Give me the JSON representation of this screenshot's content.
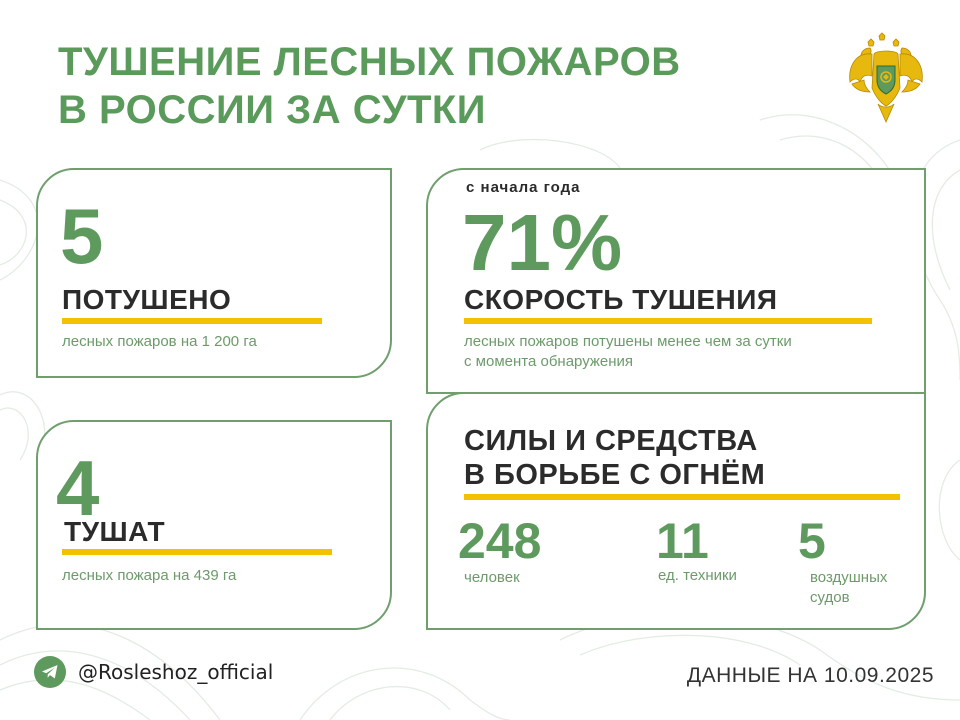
{
  "title": {
    "line1": "ТУШЕНИЕ ЛЕСНЫХ ПОЖАРОВ",
    "line2": "В РОССИИ ЗА СУТКИ"
  },
  "emblem": {
    "icon": "double-headed-eagle-emblem-icon"
  },
  "extinguished": {
    "value": "5",
    "label": "ПОТУШЕНО",
    "description": "лесных пожаров на 1 200 га"
  },
  "extinguishing": {
    "value": "4",
    "label": "ТУШАТ",
    "description": "лесных пожара на 439 га"
  },
  "speed": {
    "caption": "с начала года",
    "value": "71%",
    "label": "СКОРОСТЬ ТУШЕНИЯ",
    "description_line1": "лесных пожаров потушены менее чем за сутки",
    "description_line2": "с момента обнаружения"
  },
  "forces": {
    "heading_line1": "СИЛЫ И СРЕДСТВА",
    "heading_line2": "В БОРЬБЕ С ОГНЁМ",
    "stats": [
      {
        "value": "248",
        "label": "человек"
      },
      {
        "value": "11",
        "label": "ед. техники"
      },
      {
        "value": "5",
        "label_line1": "воздушных",
        "label_line2": "судов"
      }
    ]
  },
  "footer": {
    "icon": "telegram-icon",
    "handle": "@Rosleshoz_official",
    "date": "ДАННЫЕ НА 10.09.2025"
  },
  "colors": {
    "green": "#5e9a5e",
    "border": "#6f9f6c",
    "accent_bar": "#f2c200",
    "text_dark": "#2b2b2b"
  }
}
